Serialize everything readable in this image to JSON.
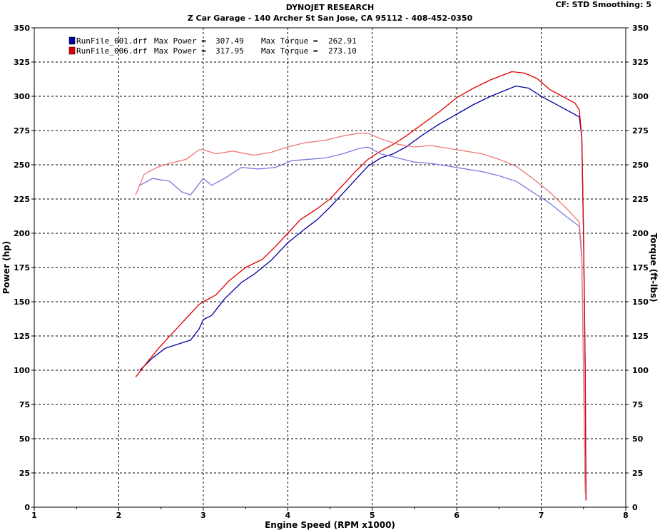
{
  "header": {
    "title": "DYNOJET RESEARCH",
    "subtitle": "Z Car Garage - 140 Archer St San Jose, CA 95112 - 408-452-0350",
    "settings": "CF: STD  Smoothing: 5"
  },
  "chart_data": {
    "type": "line",
    "title": "DYNOJET RESEARCH",
    "subtitle": "Z Car Garage - 140 Archer St San Jose, CA 95112 - 408-452-0350",
    "xlabel": "Engine Speed (RPM x1000)",
    "ylabel_left": "Power (hp)",
    "ylabel_right": "Torque (ft-lbs)",
    "xlim": [
      1,
      8
    ],
    "ylim": [
      0,
      350
    ],
    "grid": true,
    "legend_position": "top-left",
    "x_ticks": [
      "1",
      "2",
      "3",
      "4",
      "5",
      "6",
      "7",
      "8"
    ],
    "y_ticks": [
      "0",
      "25",
      "50",
      "75",
      "100",
      "125",
      "150",
      "175",
      "200",
      "225",
      "250",
      "275",
      "300",
      "325",
      "350"
    ],
    "legend": [
      {
        "file": "RunFile_001.drf",
        "max_power_label": "Max Power =",
        "max_power": "307.49",
        "max_torque_label": "Max Torque =",
        "max_torque": "262.91",
        "color": "#0000a0"
      },
      {
        "file": "RunFile_006.drf",
        "max_power_label": "Max Power =",
        "max_power": "317.95",
        "max_torque_label": "Max Torque =",
        "max_torque": "273.10",
        "color": "#e00000"
      }
    ],
    "series": [
      {
        "name": "RunFile_001.drf",
        "measure": "power",
        "color": "#0000a0",
        "x": [
          2.25,
          2.4,
          2.55,
          2.7,
          2.85,
          2.95,
          3.0,
          3.1,
          3.25,
          3.45,
          3.6,
          3.8,
          4.0,
          4.2,
          4.35,
          4.5,
          4.65,
          4.8,
          4.95,
          5.1,
          5.25,
          5.4,
          5.6,
          5.8,
          6.0,
          6.2,
          6.4,
          6.6,
          6.7,
          6.85,
          7.0,
          7.15,
          7.3,
          7.45,
          7.48,
          7.5,
          7.52,
          7.53
        ],
        "y": [
          100,
          109,
          116,
          119,
          122,
          130,
          137,
          140,
          152,
          164,
          170,
          180,
          193,
          203,
          210,
          219,
          229,
          239,
          249,
          255,
          258,
          263,
          272,
          280,
          287,
          294,
          300,
          305,
          307.5,
          306,
          300,
          295,
          290,
          285,
          270,
          200,
          100,
          5
        ]
      },
      {
        "name": "RunFile_006.drf",
        "measure": "power",
        "color": "#e00000",
        "x": [
          2.2,
          2.35,
          2.5,
          2.65,
          2.8,
          2.95,
          3.0,
          3.15,
          3.3,
          3.5,
          3.7,
          3.85,
          4.0,
          4.15,
          4.35,
          4.5,
          4.65,
          4.8,
          4.95,
          5.1,
          5.25,
          5.4,
          5.6,
          5.8,
          6.0,
          6.2,
          6.4,
          6.65,
          6.8,
          6.95,
          7.1,
          7.25,
          7.4,
          7.45,
          7.48,
          7.5,
          7.52,
          7.53
        ],
        "y": [
          95,
          107,
          118,
          128,
          138,
          148,
          150,
          155,
          165,
          175,
          181,
          190,
          200,
          210,
          218,
          225,
          235,
          245,
          254,
          260,
          265,
          271,
          280,
          289,
          299,
          306,
          312,
          317.95,
          317,
          313,
          305,
          300,
          295,
          290,
          270,
          200,
          100,
          5
        ]
      },
      {
        "name": "RunFile_001.drf",
        "measure": "torque",
        "color": "#7a7ae0",
        "x": [
          2.25,
          2.4,
          2.6,
          2.75,
          2.85,
          2.95,
          3.0,
          3.1,
          3.25,
          3.45,
          3.65,
          3.85,
          4.05,
          4.25,
          4.45,
          4.65,
          4.85,
          4.95,
          5.1,
          5.3,
          5.5,
          5.7,
          5.9,
          6.1,
          6.3,
          6.5,
          6.7,
          6.9,
          7.1,
          7.3,
          7.45,
          7.48,
          7.5,
          7.52
        ],
        "y": [
          235,
          240,
          238,
          230,
          228,
          236,
          240,
          235,
          240,
          248,
          247,
          248,
          253,
          254,
          255,
          258,
          262,
          262.91,
          258,
          255,
          252,
          251,
          249,
          247,
          245,
          242,
          238,
          230,
          222,
          212,
          205,
          180,
          100,
          10
        ]
      },
      {
        "name": "RunFile_006.drf",
        "measure": "torque",
        "color": "#f07878",
        "x": [
          2.2,
          2.3,
          2.45,
          2.6,
          2.8,
          2.95,
          3.0,
          3.15,
          3.35,
          3.6,
          3.8,
          4.0,
          4.2,
          4.45,
          4.65,
          4.85,
          4.95,
          5.1,
          5.3,
          5.5,
          5.7,
          5.9,
          6.1,
          6.3,
          6.5,
          6.7,
          6.9,
          7.1,
          7.3,
          7.45,
          7.48,
          7.5,
          7.52
        ],
        "y": [
          228,
          243,
          248,
          251,
          254,
          261,
          261,
          258,
          260,
          257,
          259,
          263,
          266,
          268,
          271,
          273.1,
          273,
          269,
          265,
          263,
          264,
          262,
          260,
          258,
          254,
          249,
          240,
          230,
          218,
          208,
          185,
          100,
          10
        ]
      }
    ]
  }
}
